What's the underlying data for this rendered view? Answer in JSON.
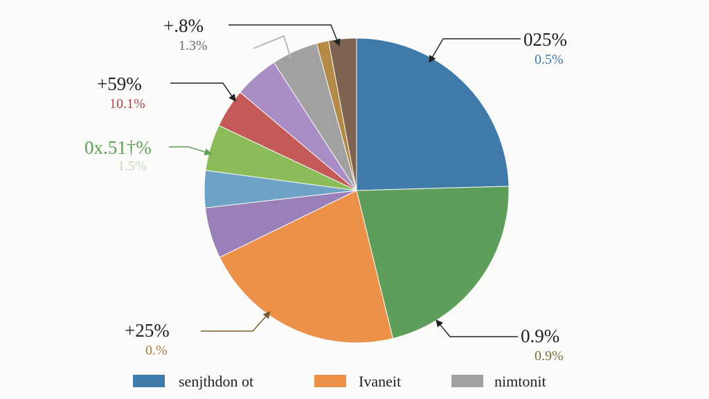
{
  "chart_data": {
    "type": "pie",
    "title": "",
    "slices": [
      {
        "value": 25.0,
        "color": "#3f7aa8"
      },
      {
        "value": 22.0,
        "color": "#5f9e5a"
      },
      {
        "value": 22.0,
        "color": "#ec9149"
      },
      {
        "value": 5.5,
        "color": "#9a80b8"
      },
      {
        "value": 4.0,
        "color": "#6ea3c6"
      },
      {
        "value": 5.0,
        "color": "#8cbc5a"
      },
      {
        "value": 4.2,
        "color": "#c45a57"
      },
      {
        "value": 4.8,
        "color": "#a98dc4"
      },
      {
        "value": 5.0,
        "color": "#a1a1a1"
      },
      {
        "value": 1.3,
        "color": "#b38a48"
      },
      {
        "value": 3.0,
        "color": "#7f6351"
      }
    ],
    "callouts": [
      {
        "main": "025%",
        "sub": "0.5%",
        "sub_color": "#3f7aa8",
        "main_color": "#1f1f1f"
      },
      {
        "main": "0.9%",
        "sub": "0.9%",
        "sub_color": "#7a6a3a",
        "main_color": "#1f1f1f"
      },
      {
        "main": "+25%",
        "sub": "0.%",
        "sub_color": "#b07a3a",
        "main_color": "#1f1f1f"
      },
      {
        "main": "0x.51†%",
        "sub": "1.5%",
        "sub_color": "#c8d8b8",
        "main_color": "#5f9e5a"
      },
      {
        "main": "+59%",
        "sub": "10.1%",
        "sub_color": "#b0424a",
        "main_color": "#1f1f1f"
      },
      {
        "main": "+.8%",
        "sub": "1.3%",
        "sub_color": "#6a6a6a",
        "main_color": "#1f1f1f"
      }
    ],
    "legend": [
      {
        "label": "senjthdon ot",
        "color": "#3f7aa8"
      },
      {
        "label": "Ivaneit",
        "color": "#ec9149"
      },
      {
        "label": "nimtonit",
        "color": "#a1a1a1"
      }
    ],
    "legend_position": "bottom"
  }
}
